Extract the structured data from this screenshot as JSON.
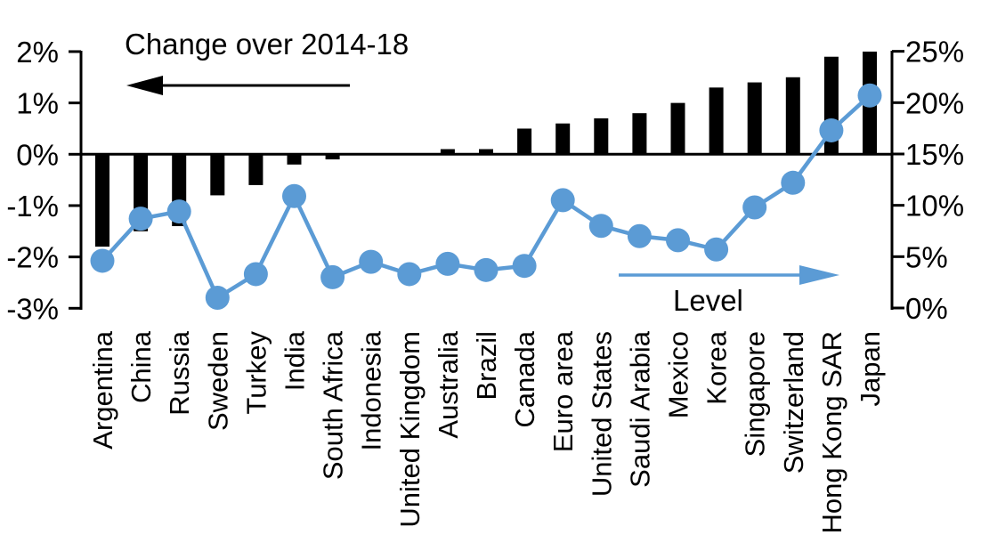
{
  "chart_data": {
    "type": "bar",
    "title": "",
    "categories": [
      "Argentina",
      "China",
      "Russia",
      "Sweden",
      "Turkey",
      "India",
      "South Africa",
      "Indonesia",
      "United Kingdom",
      "Australia",
      "Brazil",
      "Canada",
      "Euro area",
      "United States",
      "Saudi Arabia",
      "Mexico",
      "Korea",
      "Singapore",
      "Switzerland",
      "Hong Kong SAR",
      "Japan"
    ],
    "series": [
      {
        "name": "Change over 2014-18",
        "type": "bar",
        "axis": "left",
        "color": "#000000",
        "values": [
          -1.8,
          -1.5,
          -1.4,
          -0.8,
          -0.6,
          -0.2,
          -0.1,
          0.0,
          0.0,
          0.1,
          0.1,
          0.5,
          0.6,
          0.7,
          0.8,
          1.0,
          1.3,
          1.4,
          1.5,
          1.9,
          2.0
        ]
      },
      {
        "name": "Level",
        "type": "line",
        "axis": "right",
        "color": "#5B9BD5",
        "values": [
          4.6,
          8.7,
          9.4,
          1.0,
          3.3,
          10.9,
          3.0,
          4.5,
          3.3,
          4.3,
          3.7,
          4.1,
          10.5,
          8.0,
          7.0,
          6.6,
          5.7,
          9.8,
          12.2,
          17.3,
          20.7
        ]
      }
    ],
    "left_axis": {
      "tick_labels": [
        "2%",
        "1%",
        "0%",
        "-1%",
        "-2%",
        "-3%"
      ],
      "tick_values": [
        2,
        1,
        0,
        -1,
        -2,
        -3
      ],
      "min": -3,
      "max": 2,
      "unit": "%"
    },
    "right_axis": {
      "tick_labels": [
        "25%",
        "20%",
        "15%",
        "10%",
        "5%",
        "0%"
      ],
      "tick_values": [
        25,
        20,
        15,
        10,
        5,
        0
      ],
      "min": 0,
      "max": 25,
      "unit": "%"
    },
    "annotations": {
      "bar_series_label": "Change over 2014-18",
      "line_series_label": "Level"
    },
    "grid": false,
    "legend_position": "in-plot arrow annotations",
    "xlabel": "",
    "ylabel_left": "",
    "ylabel_right": ""
  },
  "colors": {
    "bar": "#000000",
    "line": "#5B9BD5",
    "background": "#FFFFFF",
    "text": "#000000"
  }
}
